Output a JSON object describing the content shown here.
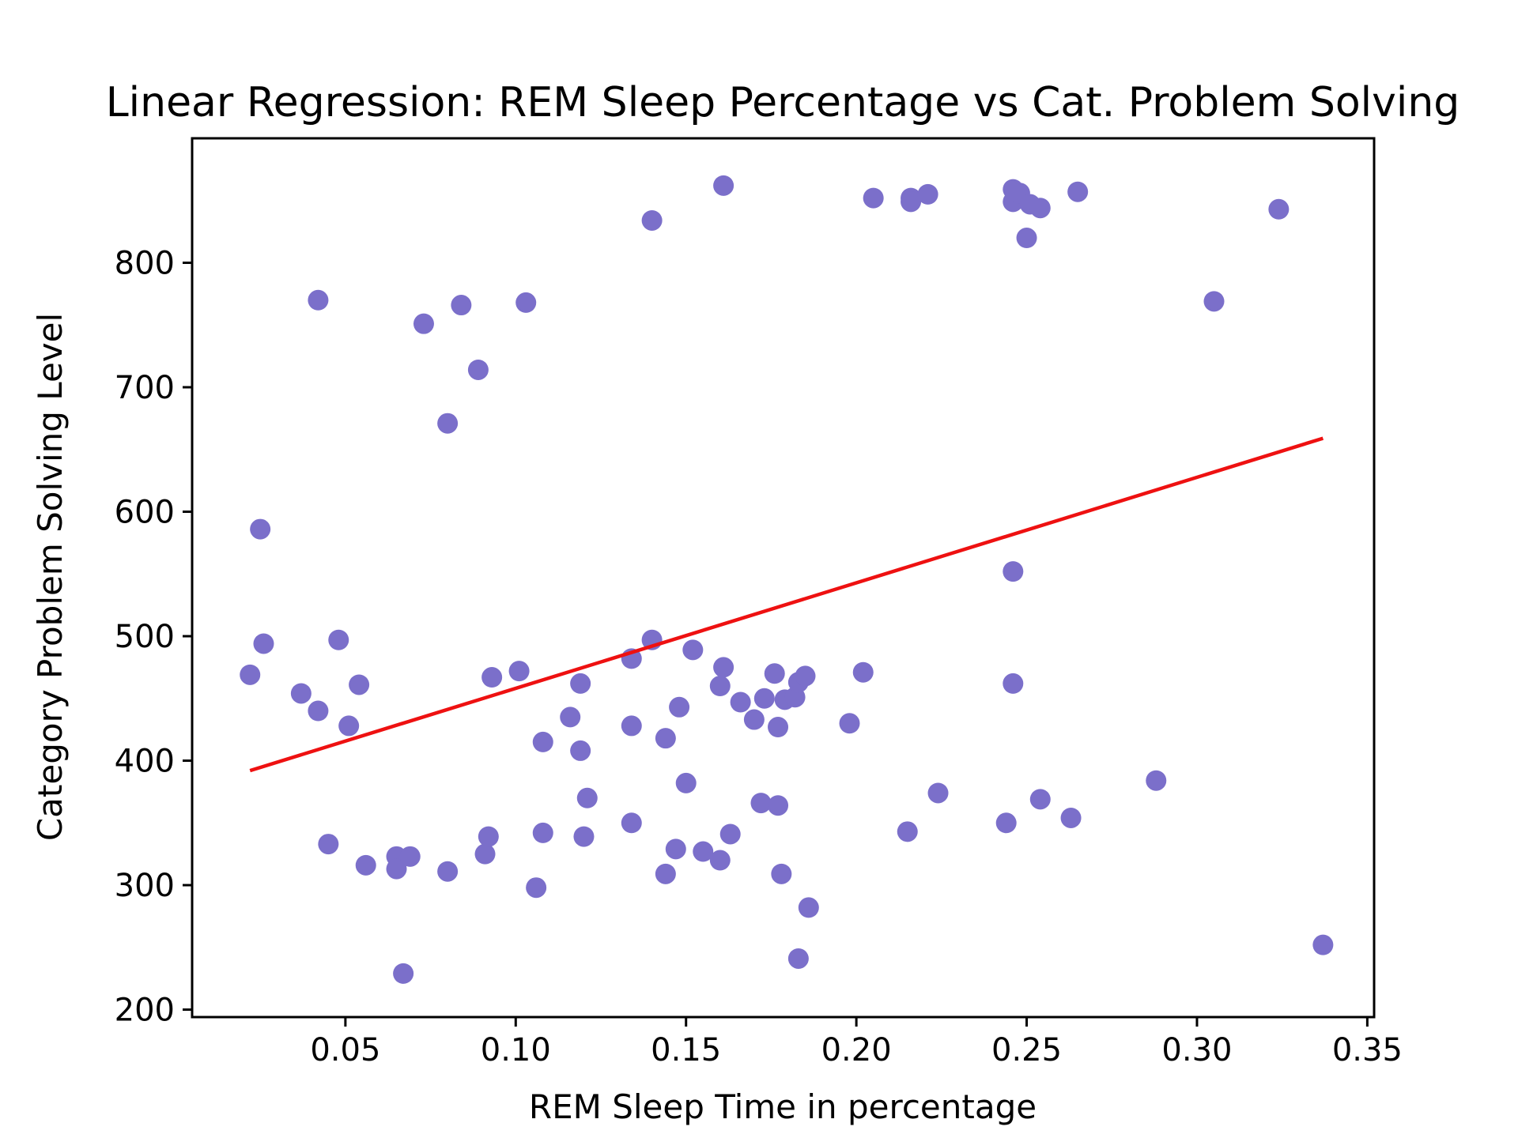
{
  "chart_data": {
    "type": "scatter",
    "title": "Linear Regression: REM Sleep Percentage vs Cat. Problem Solving",
    "xlabel": "REM Sleep Time in percentage",
    "ylabel": "Category Problem Solving Level",
    "xlim": [
      0.005,
      0.352
    ],
    "ylim": [
      194,
      900
    ],
    "xticks": [
      0.05,
      0.1,
      0.15,
      0.2,
      0.25,
      0.3,
      0.35
    ],
    "xtick_labels": [
      "0.05",
      "0.10",
      "0.15",
      "0.20",
      "0.25",
      "0.30",
      "0.35"
    ],
    "yticks": [
      200,
      300,
      400,
      500,
      600,
      700,
      800
    ],
    "ytick_labels": [
      "200",
      "300",
      "400",
      "500",
      "600",
      "700",
      "800"
    ],
    "grid": false,
    "colors": {
      "points": "#7b6fca",
      "line": "#ee1111"
    },
    "regression_line": {
      "x": [
        0.022,
        0.337
      ],
      "y": [
        392,
        659
      ]
    },
    "points": [
      {
        "x": 0.022,
        "y": 469
      },
      {
        "x": 0.025,
        "y": 586
      },
      {
        "x": 0.026,
        "y": 494
      },
      {
        "x": 0.037,
        "y": 454
      },
      {
        "x": 0.042,
        "y": 770
      },
      {
        "x": 0.042,
        "y": 440
      },
      {
        "x": 0.045,
        "y": 333
      },
      {
        "x": 0.048,
        "y": 497
      },
      {
        "x": 0.051,
        "y": 428
      },
      {
        "x": 0.054,
        "y": 461
      },
      {
        "x": 0.056,
        "y": 316
      },
      {
        "x": 0.065,
        "y": 323
      },
      {
        "x": 0.065,
        "y": 313
      },
      {
        "x": 0.067,
        "y": 229
      },
      {
        "x": 0.069,
        "y": 323
      },
      {
        "x": 0.073,
        "y": 751
      },
      {
        "x": 0.08,
        "y": 671
      },
      {
        "x": 0.08,
        "y": 311
      },
      {
        "x": 0.084,
        "y": 766
      },
      {
        "x": 0.089,
        "y": 714
      },
      {
        "x": 0.091,
        "y": 325
      },
      {
        "x": 0.092,
        "y": 339
      },
      {
        "x": 0.093,
        "y": 467
      },
      {
        "x": 0.101,
        "y": 472
      },
      {
        "x": 0.103,
        "y": 768
      },
      {
        "x": 0.106,
        "y": 298
      },
      {
        "x": 0.108,
        "y": 415
      },
      {
        "x": 0.108,
        "y": 342
      },
      {
        "x": 0.116,
        "y": 435
      },
      {
        "x": 0.119,
        "y": 462
      },
      {
        "x": 0.119,
        "y": 408
      },
      {
        "x": 0.12,
        "y": 339
      },
      {
        "x": 0.121,
        "y": 370
      },
      {
        "x": 0.134,
        "y": 482
      },
      {
        "x": 0.134,
        "y": 428
      },
      {
        "x": 0.134,
        "y": 350
      },
      {
        "x": 0.14,
        "y": 834
      },
      {
        "x": 0.14,
        "y": 497
      },
      {
        "x": 0.144,
        "y": 418
      },
      {
        "x": 0.144,
        "y": 309
      },
      {
        "x": 0.147,
        "y": 329
      },
      {
        "x": 0.148,
        "y": 443
      },
      {
        "x": 0.15,
        "y": 382
      },
      {
        "x": 0.152,
        "y": 489
      },
      {
        "x": 0.155,
        "y": 327
      },
      {
        "x": 0.16,
        "y": 460
      },
      {
        "x": 0.16,
        "y": 320
      },
      {
        "x": 0.161,
        "y": 862
      },
      {
        "x": 0.161,
        "y": 475
      },
      {
        "x": 0.163,
        "y": 341
      },
      {
        "x": 0.166,
        "y": 447
      },
      {
        "x": 0.17,
        "y": 433
      },
      {
        "x": 0.172,
        "y": 366
      },
      {
        "x": 0.173,
        "y": 450
      },
      {
        "x": 0.176,
        "y": 470
      },
      {
        "x": 0.177,
        "y": 427
      },
      {
        "x": 0.177,
        "y": 364
      },
      {
        "x": 0.178,
        "y": 309
      },
      {
        "x": 0.179,
        "y": 449
      },
      {
        "x": 0.182,
        "y": 451
      },
      {
        "x": 0.183,
        "y": 241
      },
      {
        "x": 0.183,
        "y": 463
      },
      {
        "x": 0.185,
        "y": 468
      },
      {
        "x": 0.186,
        "y": 282
      },
      {
        "x": 0.198,
        "y": 430
      },
      {
        "x": 0.202,
        "y": 471
      },
      {
        "x": 0.205,
        "y": 852
      },
      {
        "x": 0.215,
        "y": 343
      },
      {
        "x": 0.216,
        "y": 852
      },
      {
        "x": 0.216,
        "y": 849
      },
      {
        "x": 0.221,
        "y": 855
      },
      {
        "x": 0.224,
        "y": 374
      },
      {
        "x": 0.244,
        "y": 350
      },
      {
        "x": 0.246,
        "y": 859
      },
      {
        "x": 0.246,
        "y": 849
      },
      {
        "x": 0.246,
        "y": 552
      },
      {
        "x": 0.246,
        "y": 462
      },
      {
        "x": 0.248,
        "y": 856
      },
      {
        "x": 0.25,
        "y": 820
      },
      {
        "x": 0.251,
        "y": 847
      },
      {
        "x": 0.254,
        "y": 844
      },
      {
        "x": 0.254,
        "y": 369
      },
      {
        "x": 0.263,
        "y": 354
      },
      {
        "x": 0.265,
        "y": 857
      },
      {
        "x": 0.288,
        "y": 384
      },
      {
        "x": 0.305,
        "y": 769
      },
      {
        "x": 0.324,
        "y": 843
      },
      {
        "x": 0.337,
        "y": 252
      }
    ]
  }
}
